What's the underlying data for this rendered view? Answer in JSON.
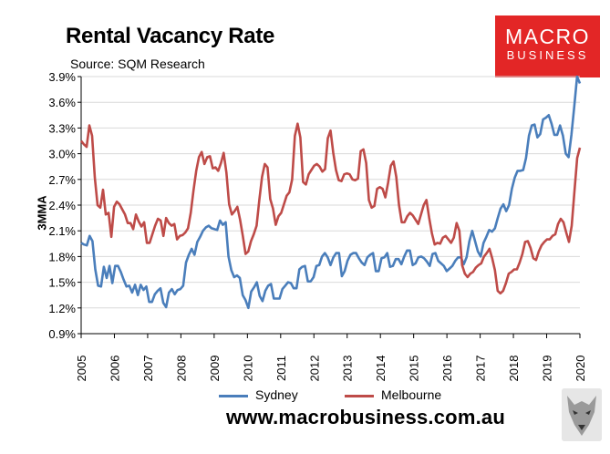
{
  "title": "Rental Vacancy Rate",
  "source": "Source: SQM Research",
  "logo": {
    "line1": "MACRO",
    "line2": "BUSINESS"
  },
  "url": "www.macrobusiness.com.au",
  "chart_data": {
    "type": "line",
    "ylabel": "3MMA",
    "ylim": [
      0.9,
      3.9
    ],
    "xlim": [
      2005,
      2020
    ],
    "yticks": [
      "0.9%",
      "1.2%",
      "1.5%",
      "1.8%",
      "2.1%",
      "2.4%",
      "2.7%",
      "3.0%",
      "3.3%",
      "3.6%",
      "3.9%"
    ],
    "xticks": [
      "2005",
      "2006",
      "2007",
      "2008",
      "2009",
      "2010",
      "2011",
      "2012",
      "2013",
      "2014",
      "2015",
      "2016",
      "2017",
      "2018",
      "2019",
      "2020"
    ],
    "legend": "bottom",
    "series": [
      {
        "name": "Sydney",
        "color": "#4a7ebb",
        "values": [
          1.96,
          1.94,
          1.93,
          2.04,
          1.98,
          1.65,
          1.46,
          1.45,
          1.68,
          1.55,
          1.69,
          1.49,
          1.69,
          1.69,
          1.62,
          1.53,
          1.45,
          1.46,
          1.38,
          1.47,
          1.35,
          1.47,
          1.41,
          1.45,
          1.27,
          1.27,
          1.36,
          1.4,
          1.43,
          1.26,
          1.21,
          1.38,
          1.42,
          1.36,
          1.41,
          1.42,
          1.46,
          1.73,
          1.82,
          1.89,
          1.82,
          1.97,
          2.03,
          2.1,
          2.14,
          2.16,
          2.13,
          2.12,
          2.11,
          2.22,
          2.17,
          2.2,
          1.8,
          1.64,
          1.56,
          1.58,
          1.55,
          1.35,
          1.29,
          1.2,
          1.39,
          1.44,
          1.5,
          1.34,
          1.28,
          1.4,
          1.46,
          1.48,
          1.31,
          1.31,
          1.31,
          1.42,
          1.46,
          1.5,
          1.49,
          1.43,
          1.43,
          1.65,
          1.68,
          1.69,
          1.51,
          1.51,
          1.56,
          1.69,
          1.7,
          1.8,
          1.84,
          1.79,
          1.7,
          1.79,
          1.84,
          1.84,
          1.57,
          1.63,
          1.75,
          1.82,
          1.84,
          1.84,
          1.78,
          1.73,
          1.7,
          1.79,
          1.82,
          1.84,
          1.63,
          1.63,
          1.78,
          1.79,
          1.84,
          1.68,
          1.69,
          1.77,
          1.77,
          1.71,
          1.8,
          1.87,
          1.87,
          1.7,
          1.72,
          1.79,
          1.8,
          1.78,
          1.74,
          1.69,
          1.83,
          1.84,
          1.75,
          1.72,
          1.69,
          1.63,
          1.66,
          1.69,
          1.75,
          1.79,
          1.79,
          1.71,
          1.79,
          1.98,
          2.1,
          1.98,
          1.86,
          1.8,
          1.96,
          2.03,
          2.11,
          2.09,
          2.13,
          2.25,
          2.36,
          2.41,
          2.33,
          2.4,
          2.59,
          2.72,
          2.8,
          2.8,
          2.81,
          2.95,
          3.21,
          3.33,
          3.34,
          3.19,
          3.23,
          3.4,
          3.42,
          3.45,
          3.35,
          3.22,
          3.22,
          3.33,
          3.21,
          3.0,
          2.96,
          3.22,
          3.55,
          3.9,
          3.82
        ]
      },
      {
        "name": "Melbourne",
        "color": "#be4b48",
        "values": [
          3.15,
          3.11,
          3.08,
          3.33,
          3.21,
          2.72,
          2.4,
          2.37,
          2.58,
          2.29,
          2.31,
          2.03,
          2.38,
          2.44,
          2.41,
          2.35,
          2.29,
          2.19,
          2.19,
          2.12,
          2.29,
          2.21,
          2.15,
          2.2,
          1.96,
          1.96,
          2.06,
          2.16,
          2.24,
          2.22,
          2.04,
          2.25,
          2.19,
          2.16,
          2.18,
          2.0,
          2.04,
          2.05,
          2.08,
          2.13,
          2.31,
          2.57,
          2.8,
          2.96,
          3.02,
          2.88,
          2.96,
          2.97,
          2.83,
          2.84,
          2.8,
          2.89,
          3.01,
          2.78,
          2.41,
          2.29,
          2.33,
          2.38,
          2.23,
          2.04,
          1.83,
          1.86,
          1.98,
          2.06,
          2.16,
          2.46,
          2.73,
          2.88,
          2.84,
          2.47,
          2.36,
          2.17,
          2.27,
          2.31,
          2.41,
          2.51,
          2.55,
          2.7,
          3.21,
          3.35,
          3.19,
          2.67,
          2.64,
          2.76,
          2.81,
          2.86,
          2.88,
          2.85,
          2.79,
          2.82,
          3.18,
          3.27,
          3.01,
          2.81,
          2.69,
          2.68,
          2.76,
          2.77,
          2.76,
          2.7,
          2.69,
          2.71,
          3.03,
          3.05,
          2.89,
          2.46,
          2.37,
          2.39,
          2.59,
          2.61,
          2.59,
          2.49,
          2.66,
          2.86,
          2.91,
          2.73,
          2.4,
          2.2,
          2.2,
          2.27,
          2.31,
          2.28,
          2.23,
          2.18,
          2.29,
          2.4,
          2.46,
          2.25,
          2.07,
          1.94,
          1.96,
          1.95,
          2.02,
          2.04,
          2.0,
          1.96,
          2.02,
          2.19,
          2.1,
          1.7,
          1.6,
          1.56,
          1.6,
          1.62,
          1.67,
          1.7,
          1.72,
          1.8,
          1.84,
          1.89,
          1.78,
          1.64,
          1.4,
          1.37,
          1.4,
          1.49,
          1.6,
          1.62,
          1.65,
          1.65,
          1.73,
          1.83,
          1.97,
          1.98,
          1.9,
          1.78,
          1.76,
          1.86,
          1.93,
          1.97,
          2.0,
          2.0,
          2.04,
          2.06,
          2.18,
          2.24,
          2.2,
          2.08,
          1.97,
          2.16,
          2.56,
          2.95,
          3.07
        ]
      }
    ]
  }
}
